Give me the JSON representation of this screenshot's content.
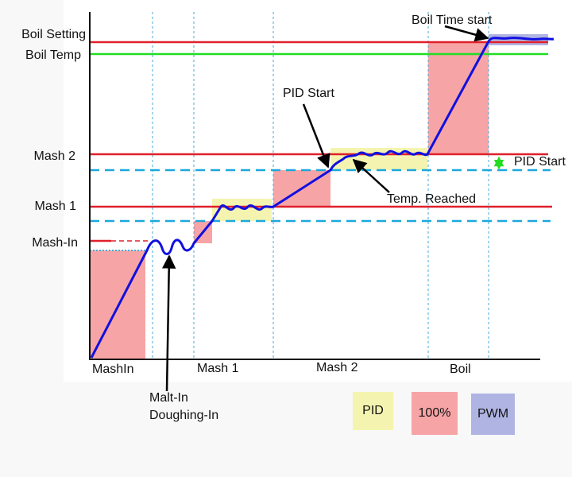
{
  "labels": {
    "boil_setting": "Boil Setting",
    "boil_temp": "Boil Temp",
    "mash_2": "Mash 2",
    "mash_1": "Mash 1",
    "mash_in": "Mash-In"
  },
  "phases": [
    "MashIn",
    "Mash 1",
    "Mash 2",
    "Boil"
  ],
  "annotations": {
    "boil_time_start": "Boil Time start",
    "pid_start_top": "PID Start",
    "pid_start_right": "PID Start",
    "temp_reached": "Temp. Reached",
    "malt_in_1": "Malt-In",
    "malt_in_2": "Doughing-In"
  },
  "legend": {
    "pid": "PID",
    "full": "100%",
    "pwm": "PWM"
  },
  "colors": {
    "setpoint_line": "#e0202a",
    "boil_temp_line": "#22dd22",
    "pid_start_line": "#1aa8dc",
    "temperature_curve": "#1010e0",
    "pid_region": "#f4f4b0",
    "full_power_region": "#f7a4a6",
    "pwm_region": "#b0b4e2",
    "pid_start_arrow": "#22dd22"
  }
}
